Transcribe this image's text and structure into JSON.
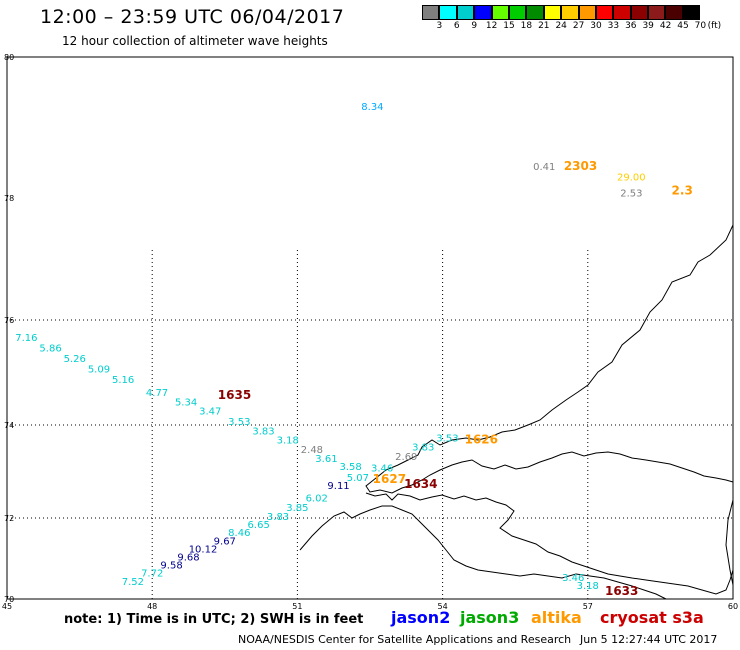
{
  "header": {
    "title": "12:00 – 23:59 UTC 06/04/2017",
    "subtitle": "12 hour collection of altimeter wave heights"
  },
  "color_scale": {
    "labels": [
      "3",
      "6",
      "9",
      "12",
      "15",
      "18",
      "21",
      "24",
      "27",
      "30",
      "33",
      "36",
      "39",
      "42",
      "45",
      "70"
    ],
    "unit": "(ft)",
    "colors": [
      "#7f7f7f",
      "#00ffff",
      "#00cdcd",
      "#0000ff",
      "#66ff00",
      "#00cd00",
      "#008b00",
      "#ffff00",
      "#ffcd00",
      "#ff9900",
      "#ff0000",
      "#cd0000",
      "#8b0000",
      "#8b1a1a",
      "#4a0000",
      "#000000"
    ]
  },
  "axes": {
    "lat_labels": [
      "80",
      "78",
      "76",
      "74",
      "72",
      "70"
    ],
    "lon_labels": [
      "45",
      "48",
      "51",
      "54",
      "57",
      "60"
    ]
  },
  "footer": {
    "note": "note: 1) Time is in UTC; 2) SWH is in feet",
    "legend": [
      {
        "name": "jason2",
        "color": "#0000ff"
      },
      {
        "name": "jason3",
        "color": "#00aa00"
      },
      {
        "name": "altika",
        "color": "#ff9900"
      },
      {
        "name": "cryosat s3a",
        "color": "#cc0000"
      }
    ],
    "credit": "NOAA/NESDIS Center for Satellite Applications and Research",
    "timestamp": "Jun  5 12:27:44 UTC 2017"
  },
  "map_data": {
    "track_times": [
      {
        "text": "1635",
        "lon": 49.7,
        "lat": 74.5,
        "color": "#8b0000"
      },
      {
        "text": "1627",
        "lon": 52.9,
        "lat": 72.75,
        "color": "#ff9900"
      },
      {
        "text": "1634",
        "lon": 53.55,
        "lat": 72.65,
        "color": "#8b0000"
      },
      {
        "text": "1626",
        "lon": 54.8,
        "lat": 73.6,
        "color": "#ff9900"
      },
      {
        "text": "1633",
        "lon": 57.7,
        "lat": 70.1,
        "color": "#8b0000"
      },
      {
        "text": "2303",
        "lon": 56.85,
        "lat": 78.4,
        "color": "#ff9900"
      },
      {
        "text": "2.3",
        "lon": 58.95,
        "lat": 78.05,
        "color": "#ff9900"
      }
    ],
    "wave_heights": [
      {
        "v": "7.16",
        "lon": 45.4,
        "lat": 75.6,
        "color": "#00cdcd"
      },
      {
        "v": "5.86",
        "lon": 45.9,
        "lat": 75.4,
        "color": "#00cdcd"
      },
      {
        "v": "5.26",
        "lon": 46.4,
        "lat": 75.2,
        "color": "#00cdcd"
      },
      {
        "v": "5.09",
        "lon": 46.9,
        "lat": 75.0,
        "color": "#00cdcd"
      },
      {
        "v": "5.16",
        "lon": 47.4,
        "lat": 74.8,
        "color": "#00cdcd"
      },
      {
        "v": "4.77",
        "lon": 48.1,
        "lat": 74.55,
        "color": "#00cdcd"
      },
      {
        "v": "5.34",
        "lon": 48.7,
        "lat": 74.37,
        "color": "#00cdcd"
      },
      {
        "v": "3.47",
        "lon": 49.2,
        "lat": 74.2,
        "color": "#00cdcd"
      },
      {
        "v": "3.53",
        "lon": 49.8,
        "lat": 74.0,
        "color": "#00cdcd"
      },
      {
        "v": "3.83",
        "lon": 50.3,
        "lat": 73.8,
        "color": "#00cdcd"
      },
      {
        "v": "3.18",
        "lon": 50.8,
        "lat": 73.6,
        "color": "#00cdcd"
      },
      {
        "v": "2.48",
        "lon": 51.3,
        "lat": 73.4,
        "color": "#7f7f7f"
      },
      {
        "v": "3.61",
        "lon": 51.6,
        "lat": 73.2,
        "color": "#00cdcd"
      },
      {
        "v": "3.58",
        "lon": 52.1,
        "lat": 73.03,
        "color": "#00cdcd"
      },
      {
        "v": "3.46",
        "lon": 52.75,
        "lat": 73.0,
        "color": "#00cdcd"
      },
      {
        "v": "5.07",
        "lon": 52.25,
        "lat": 72.8,
        "color": "#00cdcd"
      },
      {
        "v": "2.69",
        "lon": 53.25,
        "lat": 73.25,
        "color": "#7f7f7f"
      },
      {
        "v": "3.83",
        "lon": 53.6,
        "lat": 73.45,
        "color": "#00cdcd"
      },
      {
        "v": "3.53",
        "lon": 54.1,
        "lat": 73.65,
        "color": "#00cdcd"
      },
      {
        "v": "9.11",
        "lon": 51.85,
        "lat": 72.62,
        "color": "#00008b"
      },
      {
        "v": "6.02",
        "lon": 51.4,
        "lat": 72.35,
        "color": "#00cdcd"
      },
      {
        "v": "3.85",
        "lon": 51.0,
        "lat": 72.15,
        "color": "#00cdcd"
      },
      {
        "v": "3.83",
        "lon": 50.6,
        "lat": 71.95,
        "color": "#00cdcd"
      },
      {
        "v": "6.65",
        "lon": 50.2,
        "lat": 71.75,
        "color": "#00cdcd"
      },
      {
        "v": "8.46",
        "lon": 49.8,
        "lat": 71.55,
        "color": "#00cdcd"
      },
      {
        "v": "9.67",
        "lon": 49.5,
        "lat": 71.35,
        "color": "#00008b"
      },
      {
        "v": "10.12",
        "lon": 49.05,
        "lat": 71.15,
        "color": "#00008b"
      },
      {
        "v": "9.68",
        "lon": 48.75,
        "lat": 70.95,
        "color": "#00008b"
      },
      {
        "v": "9.58",
        "lon": 48.4,
        "lat": 70.75,
        "color": "#00008b"
      },
      {
        "v": "7.72",
        "lon": 48.0,
        "lat": 70.55,
        "color": "#00cdcd"
      },
      {
        "v": "7.52",
        "lon": 47.6,
        "lat": 70.35,
        "color": "#00cdcd"
      },
      {
        "v": "3.46",
        "lon": 56.7,
        "lat": 70.45,
        "color": "#00cdcd"
      },
      {
        "v": "3.18",
        "lon": 57.0,
        "lat": 70.25,
        "color": "#00cdcd"
      },
      {
        "v": "8.34",
        "lon": 52.55,
        "lat": 79.25,
        "color": "#00aaff"
      },
      {
        "v": "0.41",
        "lon": 56.1,
        "lat": 78.4,
        "color": "#7f7f7f"
      },
      {
        "v": "29.00",
        "lon": 57.9,
        "lat": 78.25,
        "color": "#ffcd00"
      },
      {
        "v": "2.53",
        "lon": 57.9,
        "lat": 78.02,
        "color": "#7f7f7f"
      }
    ]
  }
}
